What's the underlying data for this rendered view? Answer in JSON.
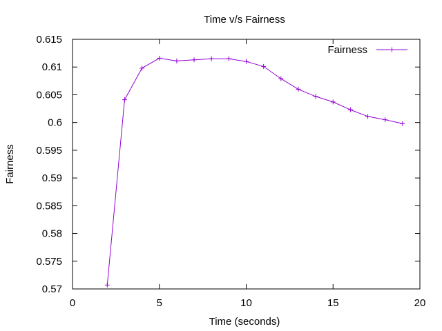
{
  "chart_data": {
    "type": "line",
    "title": "Time v/s Fairness",
    "xlabel": "Time (seconds)",
    "ylabel": "Fairness",
    "xlim": [
      0,
      20
    ],
    "ylim": [
      0.57,
      0.615
    ],
    "xticks": [
      "0",
      "5",
      "10",
      "15",
      "20"
    ],
    "yticks": [
      "0.57",
      "0.575",
      "0.58",
      "0.585",
      "0.59",
      "0.595",
      "0.6",
      "0.605",
      "0.61",
      "0.615"
    ],
    "grid": false,
    "legend_position": "top-right",
    "series": [
      {
        "name": "Fairness",
        "color": "#9400d3",
        "marker": "plus",
        "x": [
          2,
          3,
          4,
          5,
          6,
          7,
          8,
          9,
          10,
          11,
          12,
          13,
          14,
          15,
          16,
          17,
          18,
          19
        ],
        "y": [
          0.5707,
          0.6041,
          0.6098,
          0.6116,
          0.6111,
          0.6113,
          0.6115,
          0.6115,
          0.611,
          0.6101,
          0.6079,
          0.606,
          0.6047,
          0.6037,
          0.6023,
          0.6011,
          0.6005,
          0.5998
        ]
      }
    ]
  }
}
